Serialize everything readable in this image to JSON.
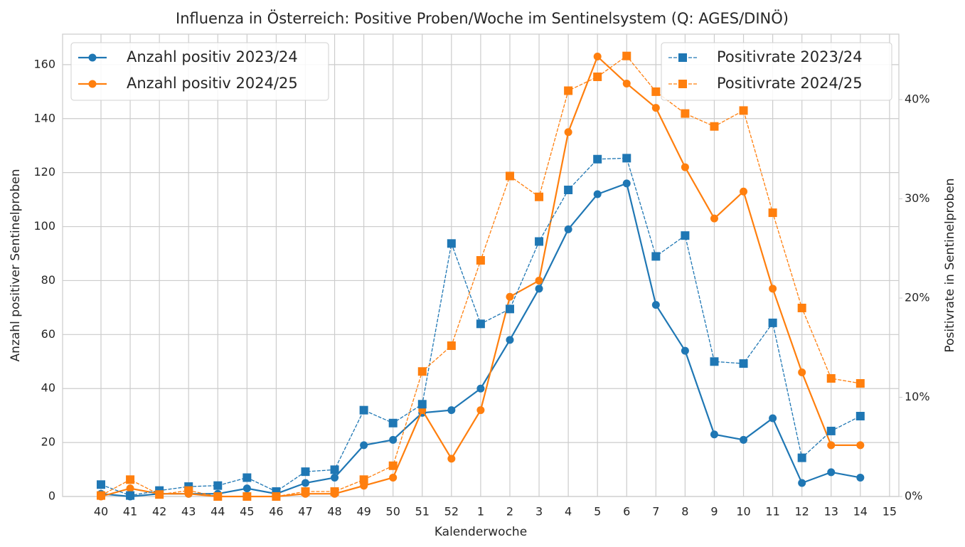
{
  "chart_data": {
    "type": "line",
    "title": "Influenza in Österreich: Positive Proben/Woche im Sentinelsystem (Q: AGES/DINÖ)",
    "xlabel": "Kalenderwoche",
    "ylabel": "Anzahl positiver Sentinelproben",
    "y2label": "Positivrate in Sentinelproben",
    "categories": [
      "40",
      "41",
      "42",
      "43",
      "44",
      "45",
      "46",
      "47",
      "48",
      "49",
      "50",
      "51",
      "52",
      "1",
      "2",
      "3",
      "4",
      "5",
      "6",
      "7",
      "8",
      "9",
      "10",
      "11",
      "12",
      "13",
      "14",
      "15"
    ],
    "series": [
      {
        "name": "Anzahl positiv 2023/24",
        "color": "#1f77b4",
        "marker": "circle",
        "linestyle": "solid",
        "axis": "y",
        "values": [
          1,
          0,
          1,
          1,
          1,
          3,
          1,
          5,
          7,
          19,
          21,
          31,
          32,
          40,
          58,
          77,
          99,
          112,
          116,
          71,
          54,
          23,
          21,
          29,
          5,
          9,
          7,
          null
        ]
      },
      {
        "name": "Anzahl positiv 2024/25",
        "color": "#ff7f0e",
        "marker": "circle",
        "linestyle": "solid",
        "axis": "y",
        "values": [
          0,
          3,
          1,
          1,
          0,
          0,
          0,
          1,
          1,
          4,
          7,
          32,
          14,
          32,
          74,
          80,
          135,
          163,
          153,
          144,
          122,
          103,
          113,
          77,
          46,
          19,
          19,
          null
        ]
      },
      {
        "name": "Positivrate 2023/24",
        "color": "#1f77b4",
        "marker": "square",
        "linestyle": "dashed",
        "axis": "y2",
        "values": [
          1.2,
          0.1,
          0.6,
          1.0,
          1.1,
          1.9,
          0.5,
          2.5,
          2.7,
          8.7,
          7.4,
          9.3,
          25.5,
          17.4,
          18.9,
          25.7,
          30.9,
          34.0,
          34.1,
          24.2,
          26.3,
          13.6,
          13.4,
          17.5,
          3.9,
          6.6,
          8.1,
          null
        ]
      },
      {
        "name": "Positivrate 2024/25",
        "color": "#ff7f0e",
        "marker": "square",
        "linestyle": "dashed",
        "axis": "y2",
        "values": [
          0.1,
          1.7,
          0.2,
          0.6,
          0,
          0,
          0,
          0.5,
          0.5,
          1.7,
          3.1,
          12.6,
          15.2,
          23.8,
          32.3,
          30.2,
          40.9,
          42.3,
          44.4,
          40.8,
          38.6,
          37.3,
          38.9,
          28.6,
          19.0,
          11.9,
          11.4,
          null
        ]
      }
    ],
    "ylim": [
      0,
      171.3
    ],
    "yticks": [
      0,
      20,
      40,
      60,
      80,
      100,
      120,
      140,
      160
    ],
    "y2lim": [
      0,
      46.6
    ],
    "y2ticks": [
      {
        "value": 0,
        "label": "0%"
      },
      {
        "value": 10,
        "label": "10%"
      },
      {
        "value": 20,
        "label": "20%"
      },
      {
        "value": 30,
        "label": "30%"
      },
      {
        "value": 40,
        "label": "40%"
      }
    ],
    "grid": true
  }
}
